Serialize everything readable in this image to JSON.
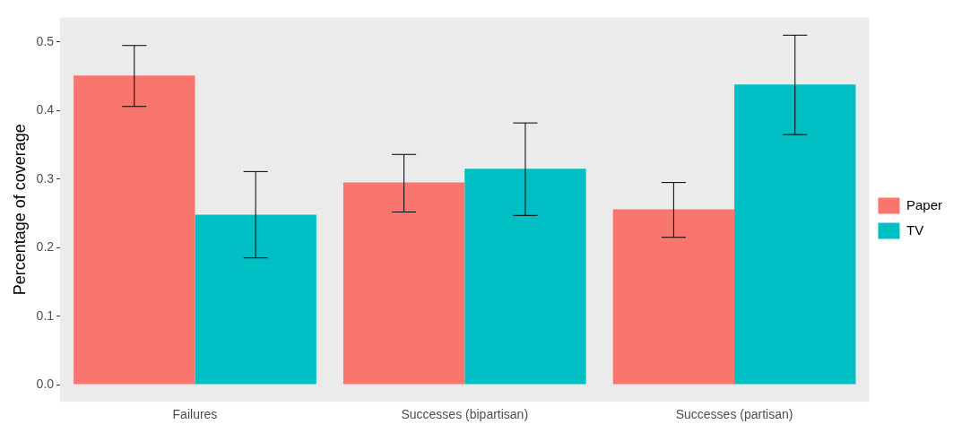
{
  "chart_data": {
    "type": "bar",
    "ylabel": "Percentage of coverage",
    "categories": [
      "Failures",
      "Successes (bipartisan)",
      "Successes (partisan)"
    ],
    "series": [
      {
        "name": "Paper",
        "color": "#f8766d",
        "values": [
          0.451,
          0.295,
          0.256
        ],
        "errors": [
          [
            0.406,
            0.495
          ],
          [
            0.252,
            0.336
          ],
          [
            0.215,
            0.295
          ]
        ]
      },
      {
        "name": "TV",
        "color": "#00bfc4",
        "values": [
          0.248,
          0.315,
          0.438
        ],
        "errors": [
          [
            0.185,
            0.311
          ],
          [
            0.247,
            0.382
          ],
          [
            0.365,
            0.51
          ]
        ]
      }
    ],
    "ylim": [
      -0.025,
      0.536
    ],
    "yticks": [
      {
        "value": 0,
        "label": "0.0"
      },
      0.1,
      0.2,
      0.3,
      0.4,
      0.5
    ],
    "grid": false,
    "legend": "right"
  }
}
